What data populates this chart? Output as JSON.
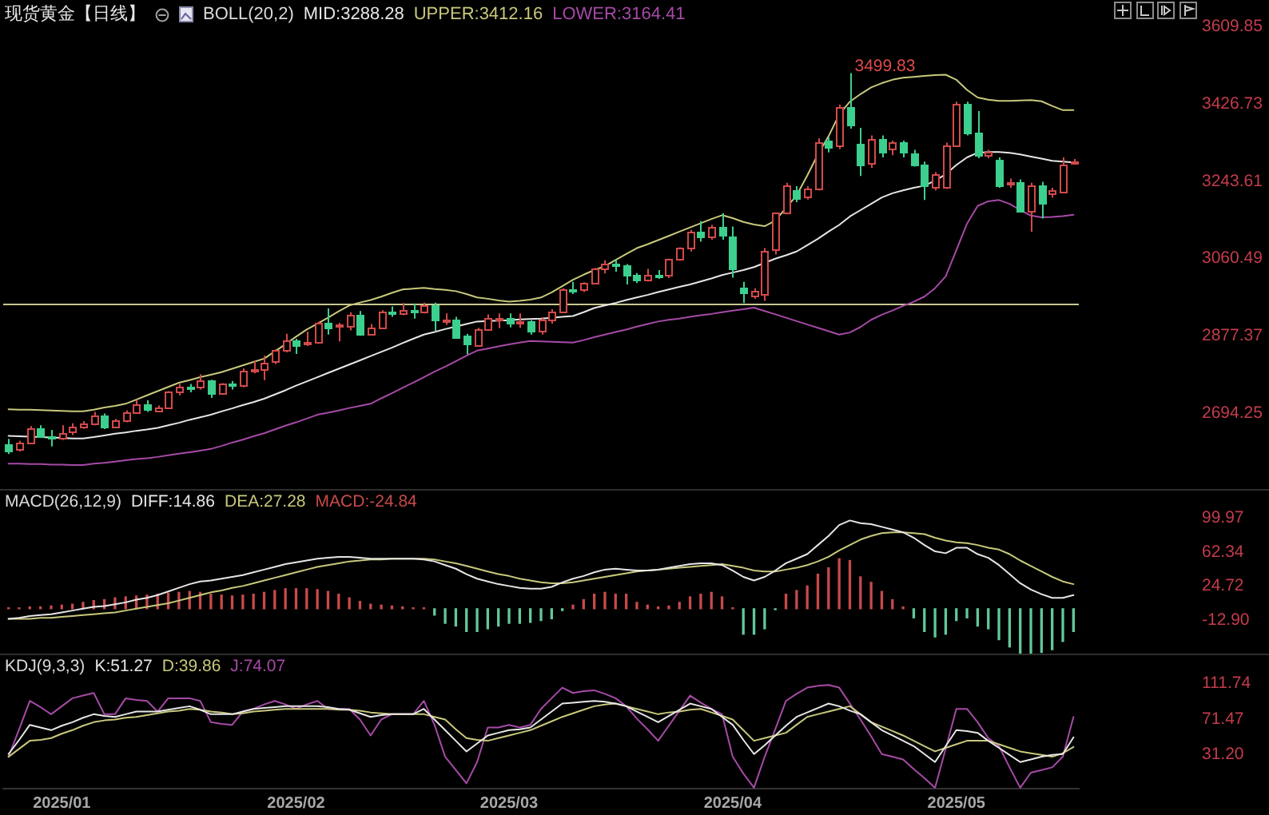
{
  "chart_data": [
    {
      "type": "candlestick",
      "title": "现货黄金【日线】",
      "legend_title": "BOLL(20,2)",
      "marker": "none",
      "tick_labels": "y",
      "categories": [
        null,
        null,
        null,
        null,
        null,
        null,
        null,
        null,
        null,
        null,
        null,
        null,
        null,
        null,
        null,
        null,
        null,
        null,
        null,
        null,
        null,
        null,
        null,
        null,
        null,
        null,
        null,
        null,
        null,
        null,
        null,
        null,
        null,
        null,
        null,
        null,
        null,
        null,
        null,
        null,
        null,
        null,
        null,
        null,
        null,
        null,
        null,
        null,
        null,
        null,
        null,
        null,
        null,
        null,
        null,
        null,
        null,
        null,
        null,
        null,
        null,
        null,
        null,
        null,
        null,
        null,
        null,
        null,
        null,
        null,
        null,
        null,
        null,
        null,
        null,
        null,
        null,
        null,
        null,
        null,
        null,
        null,
        null,
        null,
        null,
        null,
        null,
        null,
        null,
        null,
        null,
        null,
        null,
        null,
        null,
        null,
        null,
        null,
        null,
        null,
        null
      ],
      "series": [
        {
          "name": "MID:3288.28",
          "type": "line",
          "color": "#e6e6e6",
          "values": [
            2640,
            2639,
            2638,
            2637,
            2636,
            2635,
            2634,
            2634,
            2637,
            2641,
            2645,
            2648,
            2652,
            2655,
            2659,
            2665,
            2671,
            2678,
            2684,
            2690,
            2698,
            2705,
            2713,
            2720,
            2728,
            2738,
            2748,
            2759,
            2769,
            2779,
            2789,
            2799,
            2809,
            2819,
            2829,
            2839,
            2849,
            2860,
            2870,
            2880,
            2886,
            2893,
            2899,
            2905,
            2911,
            2912,
            2913,
            2914,
            2916,
            2917,
            2918,
            2920,
            2922,
            2924,
            2933,
            2943,
            2949,
            2955,
            2962,
            2968,
            2974,
            2981,
            2987,
            2993,
            2999,
            3006,
            3013,
            3021,
            3027,
            3033,
            3040,
            3050,
            3060,
            3068,
            3077,
            3092,
            3107,
            3124,
            3140,
            3160,
            3175,
            3190,
            3205,
            3215,
            3222,
            3228,
            3233,
            3245,
            3260,
            3282,
            3300,
            3311,
            3313,
            3313,
            3311,
            3307,
            3302,
            3297,
            3292,
            3290,
            3288
          ]
        },
        {
          "name": "UPPER:3412.16",
          "type": "line",
          "color": "#c8c87c",
          "values": [
            2703,
            2702,
            2702,
            2701,
            2700,
            2699,
            2698,
            2698,
            2702,
            2707,
            2711,
            2716,
            2726,
            2736,
            2746,
            2756,
            2766,
            2772,
            2779,
            2785,
            2791,
            2799,
            2807,
            2815,
            2823,
            2840,
            2857,
            2875,
            2892,
            2906,
            2920,
            2935,
            2949,
            2956,
            2962,
            2970,
            2979,
            2987,
            2989,
            2991,
            2988,
            2986,
            2983,
            2976,
            2968,
            2965,
            2961,
            2958,
            2960,
            2963,
            2968,
            2980,
            2995,
            3010,
            3022,
            3033,
            3042,
            3057,
            3071,
            3085,
            3094,
            3104,
            3114,
            3124,
            3134,
            3144,
            3154,
            3163,
            3156,
            3147,
            3141,
            3137,
            3150,
            3180,
            3210,
            3257,
            3307,
            3350,
            3402,
            3432,
            3450,
            3466,
            3476,
            3484,
            3489,
            3491,
            3493,
            3495,
            3496,
            3484,
            3460,
            3442,
            3437,
            3434,
            3434,
            3435,
            3436,
            3433,
            3422,
            3412,
            3412
          ]
        },
        {
          "name": "LOWER:3164.41",
          "type": "line",
          "color": "#a64aa6",
          "values": [
            2574,
            2574,
            2573,
            2573,
            2572,
            2572,
            2571,
            2571,
            2574,
            2576,
            2579,
            2582,
            2585,
            2587,
            2590,
            2594,
            2598,
            2601,
            2605,
            2609,
            2616,
            2624,
            2631,
            2639,
            2646,
            2655,
            2664,
            2672,
            2681,
            2690,
            2695,
            2700,
            2706,
            2711,
            2716,
            2729,
            2741,
            2754,
            2766,
            2779,
            2792,
            2804,
            2817,
            2830,
            2842,
            2847,
            2852,
            2857,
            2861,
            2865,
            2864,
            2863,
            2862,
            2861,
            2867,
            2874,
            2880,
            2886,
            2892,
            2899,
            2905,
            2911,
            2915,
            2918,
            2922,
            2926,
            2929,
            2933,
            2937,
            2940,
            2944,
            2936,
            2928,
            2920,
            2912,
            2904,
            2896,
            2888,
            2880,
            2885,
            2898,
            2915,
            2927,
            2937,
            2948,
            2958,
            2970,
            2990,
            3018,
            3080,
            3143,
            3185,
            3196,
            3199,
            3190,
            3175,
            3162,
            3158,
            3159,
            3161,
            3164
          ]
        }
      ],
      "ohlc": [
        [
          2621,
          2633,
          2597,
          2607
        ],
        [
          2607,
          2628,
          2603,
          2624
        ],
        [
          2624,
          2663,
          2620,
          2658
        ],
        [
          2658,
          2665,
          2635,
          2640
        ],
        [
          2640,
          2654,
          2615,
          2636
        ],
        [
          2636,
          2665,
          2630,
          2648
        ],
        [
          2648,
          2670,
          2642,
          2661
        ],
        [
          2661,
          2675,
          2657,
          2670
        ],
        [
          2670,
          2697,
          2665,
          2690
        ],
        [
          2690,
          2693,
          2656,
          2663
        ],
        [
          2663,
          2680,
          2658,
          2677
        ],
        [
          2677,
          2700,
          2672,
          2697
        ],
        [
          2697,
          2725,
          2693,
          2715
        ],
        [
          2715,
          2724,
          2697,
          2702
        ],
        [
          2702,
          2712,
          2696,
          2708
        ],
        [
          2708,
          2746,
          2705,
          2744
        ],
        [
          2744,
          2763,
          2736,
          2756
        ],
        [
          2756,
          2763,
          2743,
          2754
        ],
        [
          2754,
          2786,
          2750,
          2770
        ],
        [
          2770,
          2773,
          2730,
          2740
        ],
        [
          2740,
          2765,
          2737,
          2763
        ],
        [
          2763,
          2770,
          2750,
          2760
        ],
        [
          2760,
          2800,
          2755,
          2794
        ],
        [
          2794,
          2818,
          2788,
          2798
        ],
        [
          2798,
          2830,
          2772,
          2815
        ],
        [
          2815,
          2845,
          2810,
          2843
        ],
        [
          2843,
          2882,
          2838,
          2866
        ],
        [
          2866,
          2870,
          2834,
          2856
        ],
        [
          2856,
          2887,
          2853,
          2861
        ],
        [
          2861,
          2911,
          2858,
          2908
        ],
        [
          2908,
          2942,
          2880,
          2898
        ],
        [
          2898,
          2908,
          2864,
          2903
        ],
        [
          2903,
          2933,
          2890,
          2928
        ],
        [
          2928,
          2936,
          2877,
          2883
        ],
        [
          2883,
          2905,
          2880,
          2898
        ],
        [
          2898,
          2938,
          2893,
          2935
        ],
        [
          2935,
          2947,
          2922,
          2933
        ],
        [
          2933,
          2955,
          2926,
          2939
        ],
        [
          2939,
          2954,
          2918,
          2936
        ],
        [
          2936,
          2956,
          2930,
          2950
        ],
        [
          2950,
          2956,
          2888,
          2915
        ],
        [
          2915,
          2930,
          2903,
          2916
        ],
        [
          2916,
          2922,
          2876,
          2876
        ],
        [
          2876,
          2882,
          2833,
          2857
        ],
        [
          2857,
          2896,
          2855,
          2893
        ],
        [
          2893,
          2928,
          2890,
          2918
        ],
        [
          2918,
          2930,
          2895,
          2920
        ],
        [
          2920,
          2930,
          2897,
          2910
        ],
        [
          2910,
          2930,
          2896,
          2910
        ],
        [
          2910,
          2914,
          2880,
          2889
        ],
        [
          2889,
          2921,
          2880,
          2916
        ],
        [
          2916,
          2940,
          2906,
          2934
        ],
        [
          2934,
          2990,
          2932,
          2988
        ],
        [
          2988,
          3005,
          2976,
          2984
        ],
        [
          2984,
          3004,
          2981,
          3001
        ],
        [
          3001,
          3038,
          2999,
          3035
        ],
        [
          3035,
          3056,
          3025,
          3048
        ],
        [
          3048,
          3058,
          3029,
          3043
        ],
        [
          3043,
          3047,
          2999,
          3022
        ],
        [
          3022,
          3026,
          3002,
          3011
        ],
        [
          3011,
          3036,
          3006,
          3021
        ],
        [
          3021,
          3033,
          3012,
          3019
        ],
        [
          3019,
          3060,
          3014,
          3058
        ],
        [
          3058,
          3087,
          3055,
          3085
        ],
        [
          3085,
          3128,
          3077,
          3124
        ],
        [
          3124,
          3149,
          3100,
          3113
        ],
        [
          3113,
          3140,
          3105,
          3134
        ],
        [
          3134,
          3168,
          3105,
          3114
        ],
        [
          3114,
          3136,
          3015,
          3037
        ],
        [
          2993,
          3005,
          2955,
          2980
        ],
        [
          2975,
          2990,
          2965,
          2985
        ],
        [
          2978,
          3085,
          2960,
          3079
        ],
        [
          3079,
          3170,
          3070,
          3168
        ],
        [
          3170,
          3240,
          3165,
          3233
        ],
        [
          3222,
          3232,
          3194,
          3204
        ],
        [
          3206,
          3232,
          3200,
          3225
        ],
        [
          3225,
          3345,
          3222,
          3335
        ],
        [
          3338,
          3348,
          3312,
          3322
        ],
        [
          3326,
          3425,
          3320,
          3418
        ],
        [
          3418,
          3499.83,
          3368,
          3376
        ],
        [
          3332,
          3370,
          3256,
          3284
        ],
        [
          3284,
          3352,
          3275,
          3342
        ],
        [
          3345,
          3352,
          3300,
          3313
        ],
        [
          3319,
          3340,
          3305,
          3335
        ],
        [
          3335,
          3340,
          3300,
          3313
        ],
        [
          3309,
          3318,
          3278,
          3284
        ],
        [
          3284,
          3290,
          3199,
          3233
        ],
        [
          3228,
          3265,
          3222,
          3259
        ],
        [
          3233,
          3335,
          3225,
          3330
        ],
        [
          3330,
          3432,
          3325,
          3427
        ],
        [
          3427,
          3432,
          3352,
          3360
        ],
        [
          3360,
          3410,
          3298,
          3307
        ],
        [
          3306,
          3318,
          3298,
          3312
        ],
        [
          3294,
          3300,
          3228,
          3233
        ],
        [
          3236,
          3250,
          3228,
          3240
        ],
        [
          3241,
          3248,
          3170,
          3174
        ],
        [
          3174,
          3240,
          3124,
          3233
        ],
        [
          3233,
          3242,
          3155,
          3193
        ],
        [
          3212,
          3228,
          3205,
          3221
        ],
        [
          3221,
          3300,
          3215,
          3284
        ],
        [
          3288,
          3296,
          3284,
          3290
        ]
      ],
      "colors": [
        "#3ccf8e",
        "#d24a4a",
        "#d24a4a",
        "#3ccf8e",
        "#3ccf8e",
        "#d24a4a",
        "#d24a4a",
        "#d24a4a",
        "#d24a4a",
        "#3ccf8e",
        "#d24a4a",
        "#d24a4a",
        "#d24a4a",
        "#3ccf8e",
        "#d24a4a",
        "#d24a4a",
        "#d24a4a",
        "#3ccf8e",
        "#d24a4a",
        "#3ccf8e",
        "#d24a4a",
        "#3ccf8e",
        "#d24a4a",
        "#d24a4a",
        "#d24a4a",
        "#d24a4a",
        "#d24a4a",
        "#3ccf8e",
        "#d24a4a",
        "#d24a4a",
        "#3ccf8e",
        "#d24a4a",
        "#d24a4a",
        "#3ccf8e",
        "#d24a4a",
        "#d24a4a",
        "#3ccf8e",
        "#d24a4a",
        "#3ccf8e",
        "#d24a4a",
        "#3ccf8e",
        "#d24a4a",
        "#3ccf8e",
        "#3ccf8e",
        "#d24a4a",
        "#d24a4a",
        "#d24a4a",
        "#3ccf8e",
        "#d24a4a",
        "#3ccf8e",
        "#d24a4a",
        "#d24a4a",
        "#d24a4a",
        "#3ccf8e",
        "#d24a4a",
        "#d24a4a",
        "#d24a4a",
        "#3ccf8e",
        "#3ccf8e",
        "#3ccf8e",
        "#d24a4a",
        "#3ccf8e",
        "#d24a4a",
        "#d24a4a",
        "#d24a4a",
        "#3ccf8e",
        "#d24a4a",
        "#3ccf8e",
        "#3ccf8e",
        "#3ccf8e",
        "#d24a4a",
        "#d24a4a",
        "#d24a4a",
        "#d24a4a",
        "#3ccf8e",
        "#d24a4a",
        "#d24a4a",
        "#3ccf8e",
        "#d24a4a",
        "#3ccf8e",
        "#3ccf8e",
        "#d24a4a",
        "#3ccf8e",
        "#d24a4a",
        "#3ccf8e",
        "#3ccf8e",
        "#3ccf8e",
        "#d24a4a",
        "#d24a4a",
        "#d24a4a",
        "#3ccf8e",
        "#3ccf8e",
        "#d24a4a",
        "#3ccf8e",
        "#d24a4a",
        "#3ccf8e",
        "#d24a4a",
        "#3ccf8e",
        "#d24a4a",
        "#d24a4a",
        "#d24a4a"
      ],
      "ylim": [
        2514,
        3609.85
      ],
      "yticks": [
        3609.85,
        3426.73,
        3243.61,
        3060.49,
        2877.37,
        2694.25
      ],
      "ref_lines": [
        {
          "axis": "y",
          "value": 2953,
          "color": "#c8c890"
        }
      ],
      "annotations": [
        {
          "text": "3499.83",
          "y": 3499.83
        }
      ]
    },
    {
      "type": "line",
      "legend_title": "MACD(26,12,9)",
      "marker": "none",
      "tick_labels": "y",
      "categories": [
        null,
        null,
        null,
        null,
        null,
        null,
        null,
        null,
        null,
        null,
        null,
        null,
        null,
        null,
        null,
        null,
        null,
        null,
        null,
        null,
        null,
        null,
        null,
        null,
        null,
        null,
        null,
        null,
        null,
        null,
        null,
        null,
        null,
        null,
        null,
        null,
        null,
        null,
        null,
        null,
        null,
        null,
        null,
        null,
        null,
        null,
        null,
        null,
        null,
        null,
        null,
        null,
        null,
        null,
        null,
        null,
        null,
        null,
        null,
        null,
        null,
        null,
        null,
        null,
        null,
        null,
        null,
        null,
        null,
        null,
        null,
        null,
        null,
        null,
        null,
        null,
        null,
        null,
        null,
        null,
        null,
        null,
        null,
        null,
        null,
        null,
        null,
        null,
        null,
        null,
        null,
        null,
        null,
        null,
        null,
        null,
        null,
        null,
        null,
        null,
        null
      ],
      "series": [
        {
          "name": "DIFF:14.86",
          "type": "line",
          "color": "#e6e6e6",
          "values": [
            -11,
            -10,
            -8,
            -7,
            -6,
            -4,
            -2,
            0,
            2,
            3,
            5,
            7,
            10,
            12,
            15,
            19,
            23,
            27,
            30,
            31,
            33,
            35,
            37,
            40,
            43,
            46,
            49,
            51,
            53,
            55,
            56,
            57,
            57,
            56,
            55,
            55,
            55,
            55,
            55,
            54,
            52,
            48,
            44,
            38,
            33,
            30,
            27,
            25,
            23,
            22,
            22,
            24,
            29,
            33,
            36,
            40,
            43,
            44,
            43,
            42,
            42,
            43,
            45,
            47,
            49,
            50,
            50,
            48,
            42,
            35,
            31,
            35,
            42,
            50,
            55,
            60,
            70,
            80,
            92,
            97,
            94,
            93,
            90,
            87,
            84,
            78,
            70,
            63,
            61,
            67,
            67,
            60,
            56,
            48,
            38,
            28,
            21,
            16,
            12,
            12,
            15
          ]
        },
        {
          "name": "DEA:27.28",
          "type": "line",
          "color": "#c8c87c",
          "values": [
            -11,
            -11,
            -11,
            -10,
            -10,
            -9,
            -8,
            -7,
            -6,
            -5,
            -4,
            -2,
            0,
            2,
            4,
            6,
            9,
            12,
            15,
            18,
            20,
            23,
            25,
            28,
            31,
            34,
            37,
            40,
            43,
            46,
            48,
            50,
            52,
            53,
            54,
            54,
            55,
            55,
            55,
            55,
            54,
            52,
            50,
            47,
            44,
            41,
            38,
            36,
            33,
            31,
            29,
            28,
            28,
            29,
            31,
            33,
            35,
            37,
            39,
            41,
            42,
            43,
            44,
            45,
            46,
            47,
            48,
            49,
            47,
            45,
            42,
            41,
            41,
            43,
            45,
            48,
            52,
            57,
            64,
            70,
            76,
            80,
            83,
            84,
            84,
            83,
            82,
            78,
            75,
            73,
            72,
            70,
            67,
            65,
            60,
            53,
            47,
            41,
            35,
            30,
            27
          ]
        },
        {
          "name": "MACD:-24.84",
          "type": "bar",
          "colors": [
            "#c84a4a",
            "#c84a4a",
            "#c84a4a",
            "#c84a4a",
            "#c84a4a",
            "#c84a4a",
            "#c84a4a",
            "#c84a4a",
            "#c84a4a",
            "#c84a4a",
            "#c84a4a",
            "#c84a4a",
            "#c84a4a",
            "#c84a4a",
            "#c84a4a",
            "#c84a4a",
            "#c84a4a",
            "#c84a4a",
            "#c84a4a",
            "#c84a4a",
            "#c84a4a",
            "#c84a4a",
            "#c84a4a",
            "#c84a4a",
            "#c84a4a",
            "#c84a4a",
            "#c84a4a",
            "#c84a4a",
            "#c84a4a",
            "#c84a4a",
            "#c84a4a",
            "#c84a4a",
            "#c84a4a",
            "#c84a4a",
            "#c84a4a",
            "#c84a4a",
            "#c84a4a",
            "#c84a4a",
            "#c84a4a",
            "#c84a4a",
            "#62c89a",
            "#62c89a",
            "#62c89a",
            "#62c89a",
            "#62c89a",
            "#62c89a",
            "#62c89a",
            "#62c89a",
            "#62c89a",
            "#62c89a",
            "#62c89a",
            "#62c89a",
            "#62c89a",
            "#c84a4a",
            "#c84a4a",
            "#c84a4a",
            "#c84a4a",
            "#c84a4a",
            "#c84a4a",
            "#c84a4a",
            "#c84a4a",
            "#c84a4a",
            "#c84a4a",
            "#c84a4a",
            "#c84a4a",
            "#c84a4a",
            "#c84a4a",
            "#c84a4a",
            "#c84a4a",
            "#62c89a",
            "#62c89a",
            "#62c89a",
            "#62c89a",
            "#c84a4a",
            "#c84a4a",
            "#c84a4a",
            "#c84a4a",
            "#c84a4a",
            "#c84a4a",
            "#c84a4a",
            "#c84a4a",
            "#c84a4a",
            "#c84a4a",
            "#c84a4a",
            "#c84a4a",
            "#62c89a",
            "#62c89a",
            "#62c89a",
            "#62c89a",
            "#62c89a",
            "#62c89a",
            "#62c89a",
            "#62c89a",
            "#62c89a",
            "#62c89a",
            "#62c89a",
            "#62c89a",
            "#62c89a",
            "#62c89a",
            "#62c89a",
            "#62c89a"
          ],
          "values": [
            1,
            1,
            2,
            2,
            3,
            4,
            5,
            7,
            9,
            10,
            12,
            13,
            14,
            15,
            16,
            17,
            18,
            19,
            18,
            16,
            15,
            14,
            15,
            16,
            18,
            20,
            22,
            22,
            22,
            21,
            19,
            16,
            12,
            8,
            5,
            4,
            3,
            2,
            1,
            1,
            -7,
            -16,
            -19,
            -25,
            -25,
            -22,
            -19,
            -16,
            -16,
            -15,
            -13,
            -11,
            -2,
            4,
            10,
            16,
            18,
            16,
            16,
            7,
            4,
            2,
            3,
            7,
            13,
            16,
            18,
            13,
            1,
            -28,
            -28,
            -22,
            -1,
            16,
            20,
            25,
            38,
            45,
            55,
            53,
            35,
            29,
            19,
            10,
            2,
            -10,
            -25,
            -31,
            -28,
            -13,
            -10,
            -19,
            -22,
            -34,
            -42,
            -49,
            -49,
            -48,
            -45,
            -36,
            -25
          ]
        }
      ],
      "ylim": [
        -49.3,
        130.7
      ],
      "yticks": [
        99.97,
        62.34,
        24.72,
        {
          "value": -12.9,
          "label": "-12.90"
        }
      ]
    },
    {
      "type": "line",
      "legend_title": "KDJ(9,3,3)",
      "marker": "none",
      "categories": [
        null,
        null,
        null,
        null,
        null,
        "2025/01",
        null,
        null,
        null,
        null,
        null,
        null,
        null,
        null,
        null,
        null,
        null,
        null,
        null,
        null,
        null,
        null,
        null,
        null,
        null,
        null,
        null,
        "2025/02",
        null,
        null,
        null,
        null,
        null,
        null,
        null,
        null,
        null,
        null,
        null,
        null,
        null,
        null,
        null,
        null,
        null,
        null,
        null,
        "2025/03",
        null,
        null,
        null,
        null,
        null,
        null,
        null,
        null,
        null,
        null,
        null,
        null,
        null,
        null,
        null,
        null,
        null,
        null,
        null,
        null,
        "2025/04",
        null,
        null,
        null,
        null,
        null,
        null,
        null,
        null,
        null,
        null,
        null,
        null,
        null,
        null,
        null,
        null,
        null,
        null,
        null,
        null,
        "2025/05",
        null,
        null,
        null,
        null,
        null,
        null,
        null,
        null,
        null,
        null,
        null
      ],
      "series": [
        {
          "name": "K:51.27",
          "color": "#e6e6e6",
          "values": [
            32,
            48,
            65,
            62,
            59,
            64,
            68,
            73,
            77,
            75,
            74,
            77,
            80,
            80,
            80,
            82,
            84,
            86,
            82,
            77,
            77,
            77,
            80,
            83,
            84,
            85,
            86,
            86,
            86,
            86,
            85,
            83,
            82,
            78,
            74,
            76,
            77,
            77,
            77,
            83,
            71,
            59,
            47,
            35,
            44,
            53,
            56,
            59,
            60,
            62,
            71,
            80,
            89,
            90,
            91,
            92,
            91,
            89,
            86,
            80,
            74,
            68,
            75,
            82,
            89,
            86,
            83,
            74,
            65,
            48,
            32,
            42,
            53,
            64,
            74,
            79,
            84,
            89,
            86,
            81,
            77,
            68,
            59,
            53,
            47,
            41,
            32,
            23,
            41,
            59,
            58,
            56,
            47,
            39,
            31,
            23,
            26,
            29,
            31,
            32,
            51
          ]
        },
        {
          "name": "D:39.86",
          "color": "#c8c87c",
          "values": [
            29,
            38,
            47,
            48,
            50,
            55,
            59,
            64,
            68,
            70,
            71,
            73,
            74,
            76,
            78,
            80,
            81,
            83,
            82,
            80,
            79,
            77,
            78,
            80,
            81,
            82,
            83,
            83,
            83,
            83,
            83,
            82,
            82,
            81,
            79,
            78,
            77,
            77,
            77,
            77,
            74,
            71,
            60,
            50,
            48,
            47,
            50,
            53,
            56,
            59,
            64,
            69,
            74,
            78,
            82,
            86,
            88,
            89,
            86,
            83,
            80,
            77,
            79,
            80,
            82,
            83,
            79,
            75,
            71,
            59,
            47,
            50,
            53,
            56,
            65,
            74,
            77,
            80,
            83,
            86,
            77,
            68,
            63,
            58,
            53,
            47,
            41,
            35,
            39,
            43,
            47,
            47,
            47,
            43,
            39,
            35,
            33,
            31,
            29,
            33,
            40
          ]
        },
        {
          "name": "J:74.07",
          "color": "#a64aa6",
          "values": [
            29,
            60,
            92,
            85,
            77,
            86,
            95,
            98,
            101,
            77,
            77,
            95,
            93,
            92,
            80,
            95,
            95,
            95,
            92,
            68,
            66,
            65,
            80,
            83,
            88,
            92,
            88,
            83,
            88,
            92,
            83,
            83,
            83,
            71,
            53,
            71,
            77,
            77,
            77,
            92,
            65,
            29,
            14,
            -1,
            23,
            62,
            62,
            65,
            62,
            65,
            83,
            95,
            107,
            101,
            103,
            104,
            100,
            95,
            86,
            72,
            60,
            47,
            64,
            81,
            98,
            90,
            83,
            77,
            29,
            10,
            -6,
            29,
            60,
            92,
            100,
            107,
            109,
            110,
            107,
            89,
            71,
            52,
            32,
            29,
            26,
            15,
            5,
            -6,
            38,
            83,
            83,
            68,
            50,
            41,
            17,
            -6,
            11,
            14,
            17,
            29,
            74
          ]
        }
      ],
      "ylim": [
        -7,
        144.5
      ],
      "yticks": [
        111.74,
        71.47,
        {
          "value": 31.2,
          "label": "31.20"
        }
      ]
    }
  ]
}
